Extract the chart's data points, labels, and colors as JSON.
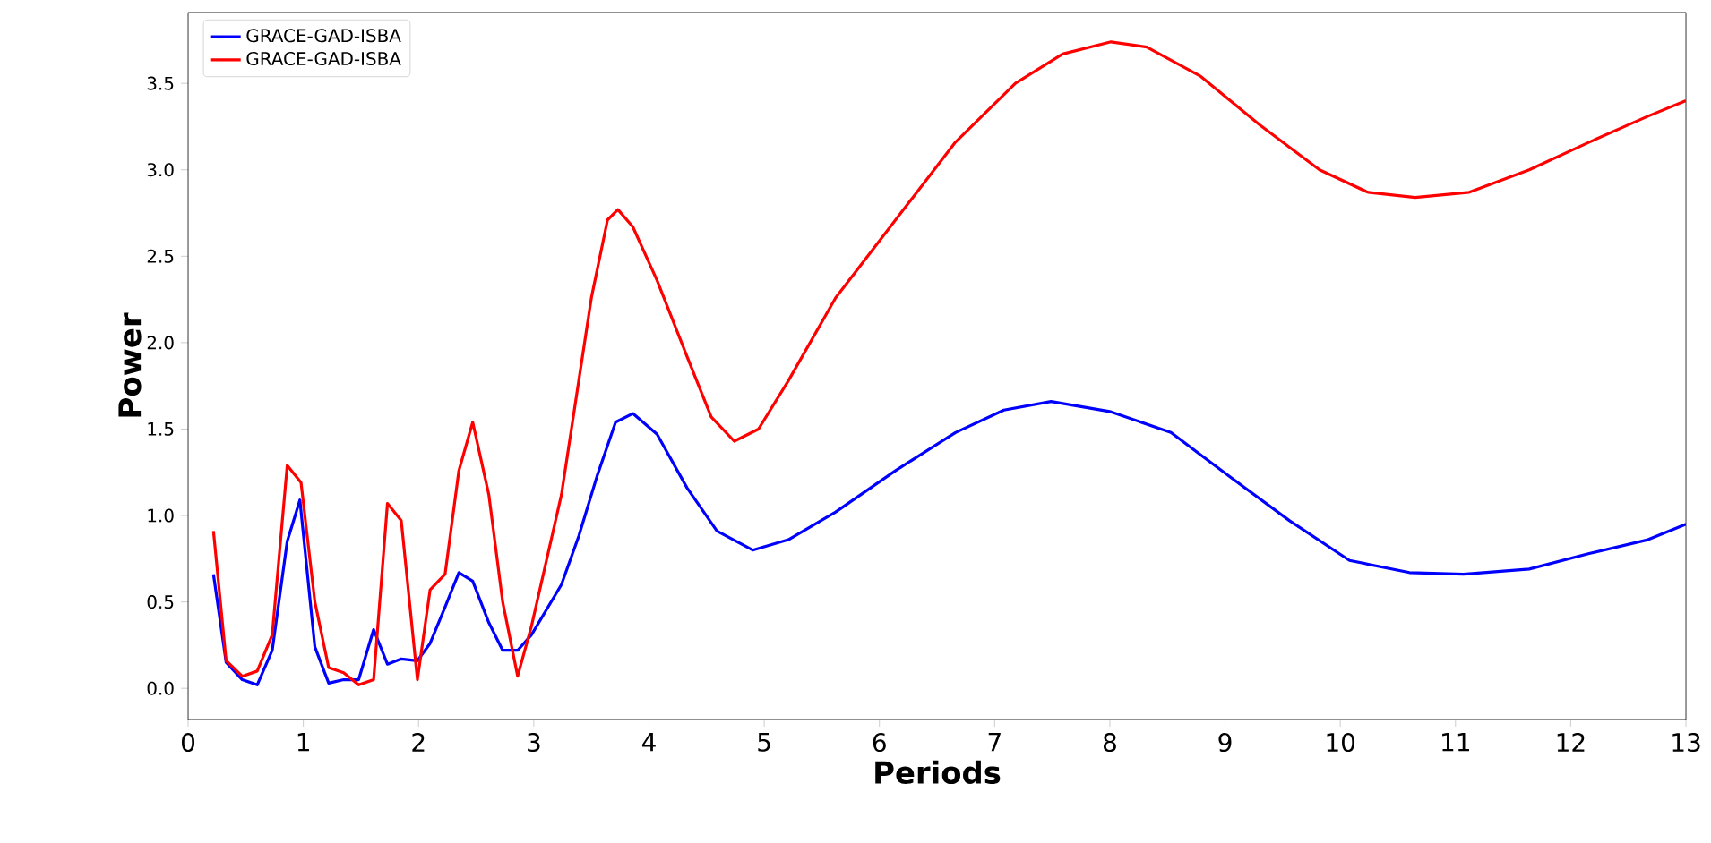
{
  "chart_data": {
    "type": "line",
    "xlabel": "Periods",
    "ylabel": "Power",
    "xlim": [
      0,
      13
    ],
    "ylim": [
      -0.18,
      3.91
    ],
    "xticks": [
      0,
      1,
      2,
      3,
      4,
      5,
      6,
      7,
      8,
      9,
      10,
      11,
      12,
      13
    ],
    "yticks": [
      {
        "value": 0,
        "label": "0.0"
      },
      {
        "value": 0.5,
        "label": "0.5"
      },
      {
        "value": 1,
        "label": "1.0"
      },
      {
        "value": 1.5,
        "label": "1.5"
      },
      {
        "value": 2,
        "label": "2.0"
      },
      {
        "value": 2.5,
        "label": "2.5"
      },
      {
        "value": 3,
        "label": "3.0"
      },
      {
        "value": 3.5,
        "label": "3.5"
      }
    ],
    "grid": false,
    "legend": "top left",
    "marker": "none",
    "line_style": "solid",
    "series": [
      {
        "name": "GRACE-GAD-ISBA",
        "color": "#0000ff",
        "x": [
          0.22,
          0.33,
          0.47,
          0.6,
          0.73,
          0.86,
          0.97,
          1.1,
          1.22,
          1.35,
          1.48,
          1.61,
          1.73,
          1.85,
          1.99,
          2.1,
          2.23,
          2.35,
          2.47,
          2.61,
          2.73,
          2.86,
          2.98,
          3.24,
          3.39,
          3.55,
          3.71,
          3.86,
          4.07,
          4.33,
          4.59,
          4.9,
          5.21,
          5.62,
          6.14,
          6.66,
          7.08,
          7.49,
          8.01,
          8.53,
          9.05,
          9.56,
          10.08,
          10.6,
          11.07,
          11.64,
          12.16,
          12.67,
          13.0
        ],
        "values": [
          0.66,
          0.15,
          0.05,
          0.02,
          0.22,
          0.85,
          1.09,
          0.24,
          0.03,
          0.05,
          0.05,
          0.34,
          0.14,
          0.17,
          0.16,
          0.26,
          0.47,
          0.67,
          0.62,
          0.38,
          0.22,
          0.22,
          0.31,
          0.6,
          0.88,
          1.23,
          1.54,
          1.59,
          1.47,
          1.16,
          0.91,
          0.8,
          0.86,
          1.02,
          1.26,
          1.48,
          1.61,
          1.66,
          1.6,
          1.48,
          1.22,
          0.97,
          0.74,
          0.67,
          0.66,
          0.69,
          0.78,
          0.86,
          0.95
        ]
      },
      {
        "name": "GRACE-GAD-ISBA",
        "color": "#ff0000",
        "x": [
          0.22,
          0.33,
          0.47,
          0.6,
          0.73,
          0.86,
          0.98,
          1.1,
          1.22,
          1.35,
          1.48,
          1.61,
          1.73,
          1.85,
          1.99,
          2.1,
          2.23,
          2.35,
          2.47,
          2.61,
          2.73,
          2.86,
          2.98,
          3.24,
          3.5,
          3.64,
          3.73,
          3.86,
          4.07,
          4.33,
          4.54,
          4.74,
          4.95,
          5.21,
          5.62,
          6.14,
          6.66,
          7.18,
          7.59,
          8.01,
          8.32,
          8.79,
          9.3,
          9.82,
          10.24,
          10.65,
          11.12,
          11.64,
          12.16,
          12.67,
          13.0
        ],
        "values": [
          0.91,
          0.16,
          0.07,
          0.1,
          0.31,
          1.29,
          1.19,
          0.5,
          0.12,
          0.09,
          0.02,
          0.05,
          1.07,
          0.97,
          0.05,
          0.57,
          0.66,
          1.26,
          1.54,
          1.12,
          0.5,
          0.07,
          0.36,
          1.12,
          2.26,
          2.71,
          2.77,
          2.67,
          2.36,
          1.92,
          1.57,
          1.43,
          1.5,
          1.78,
          2.26,
          2.71,
          3.16,
          3.5,
          3.67,
          3.74,
          3.71,
          3.54,
          3.26,
          3.0,
          2.87,
          2.84,
          2.87,
          3.0,
          3.16,
          3.31,
          3.4
        ]
      }
    ]
  }
}
